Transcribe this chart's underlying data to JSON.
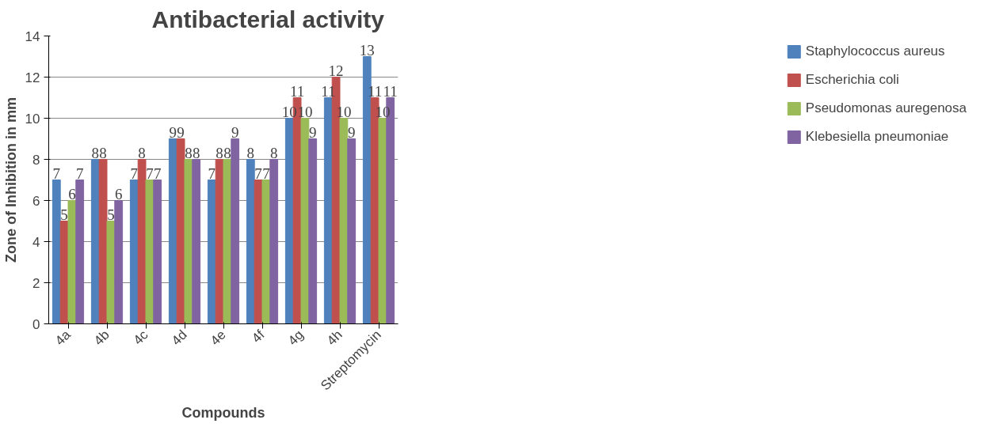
{
  "chart_data": {
    "type": "bar",
    "title": "Antibacterial activity",
    "xlabel": "Compounds",
    "ylabel": "Zone of Inhibition in mm",
    "categories": [
      "4a",
      "4b",
      "4c",
      "4d",
      "4e",
      "4f",
      "4g",
      "4h",
      "Streptomycin"
    ],
    "series": [
      {
        "name": "Staphylococcus aureus",
        "color": "#4f81bd",
        "values": [
          7,
          8,
          7,
          9,
          7,
          8,
          10,
          11,
          13
        ]
      },
      {
        "name": "Escherichia coli",
        "color": "#c0504d",
        "values": [
          5,
          8,
          8,
          9,
          8,
          7,
          11,
          12,
          11
        ]
      },
      {
        "name": "Pseudomonas auregenosa",
        "color": "#9bbb59",
        "values": [
          6,
          5,
          7,
          8,
          8,
          7,
          10,
          10,
          10
        ]
      },
      {
        "name": "Klebesiella pneumoniae",
        "color": "#8064a2",
        "values": [
          7,
          6,
          7,
          8,
          9,
          8,
          9,
          9,
          11
        ]
      }
    ],
    "ylim": [
      0,
      14
    ],
    "yticks": [
      0,
      2,
      4,
      6,
      8,
      10,
      12,
      14
    ],
    "grid": "y",
    "legend": "right",
    "data_labels": true
  }
}
